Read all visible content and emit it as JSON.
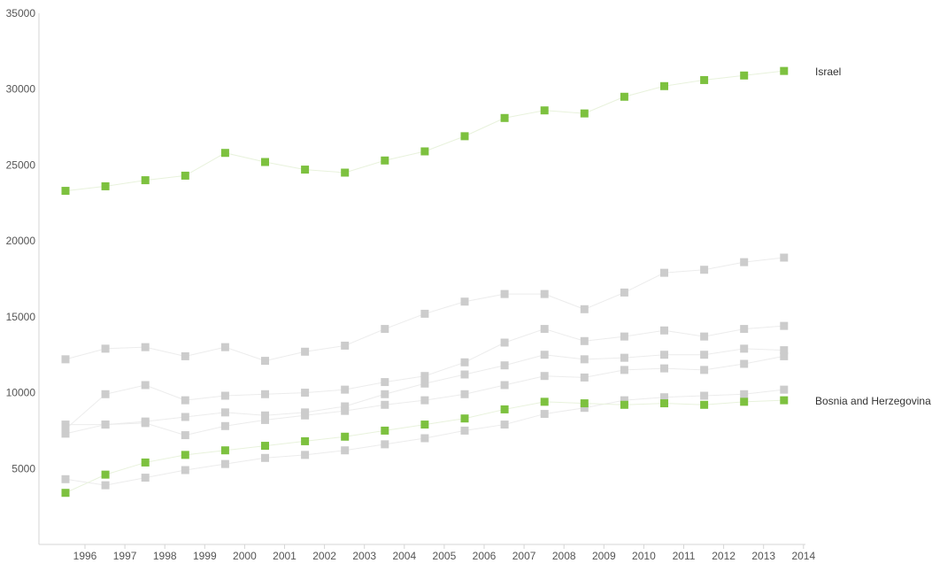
{
  "chart_data": {
    "type": "line",
    "title": "",
    "xlabel": "",
    "ylabel": "",
    "x_ticks": [
      "1996",
      "1997",
      "1998",
      "1999",
      "2000",
      "2001",
      "2002",
      "2003",
      "2004",
      "2005",
      "2006",
      "2007",
      "2008",
      "2009",
      "2010",
      "2011",
      "2012",
      "2013",
      "2014"
    ],
    "y_ticks": [
      5000,
      10000,
      15000,
      20000,
      25000,
      30000,
      35000
    ],
    "ylim": [
      0,
      35000
    ],
    "grid": false,
    "legend": "none",
    "highlight_color": "#7dc13f",
    "background_series_color": "#cccccc",
    "series": [
      {
        "name": "Israel",
        "highlight": true,
        "values": [
          23300,
          23600,
          24000,
          24300,
          25800,
          25200,
          24700,
          24500,
          25300,
          25900,
          26900,
          28100,
          28600,
          28400,
          29500,
          30200,
          30600,
          30900,
          31200
        ]
      },
      {
        "name": "Bosnia and Herzegovina",
        "highlight": true,
        "values": [
          3400,
          4600,
          5400,
          5900,
          6200,
          6500,
          6800,
          7100,
          7500,
          7900,
          8300,
          8900,
          9400,
          9300,
          9200,
          9300,
          9200,
          9400,
          9500
        ]
      },
      {
        "highlight": false,
        "values": [
          12200,
          12900,
          13000,
          12400,
          13000,
          12100,
          12700,
          13100,
          14200,
          15200,
          16000,
          16500,
          16500,
          15500,
          16600,
          17900,
          18100,
          18600,
          18900
        ]
      },
      {
        "highlight": false,
        "values": [
          7600,
          9900,
          10500,
          9500,
          9800,
          9900,
          10000,
          10200,
          10700,
          11100,
          12000,
          13300,
          14200,
          13400,
          13700,
          14100,
          13700,
          14200,
          14400
        ]
      },
      {
        "highlight": false,
        "values": [
          7900,
          7900,
          8100,
          8400,
          8700,
          8500,
          8700,
          9100,
          9900,
          10600,
          11200,
          11800,
          12500,
          12200,
          12300,
          12500,
          12500,
          12900,
          12800
        ]
      },
      {
        "highlight": false,
        "values": [
          7300,
          7900,
          8000,
          7200,
          7800,
          8200,
          8500,
          8800,
          9200,
          9500,
          9900,
          10500,
          11100,
          11000,
          11500,
          11600,
          11500,
          11900,
          12400
        ]
      },
      {
        "highlight": false,
        "values": [
          4300,
          3900,
          4400,
          4900,
          5300,
          5700,
          5900,
          6200,
          6600,
          7000,
          7500,
          7900,
          8600,
          9000,
          9500,
          9700,
          9800,
          9900,
          10200
        ]
      }
    ]
  }
}
